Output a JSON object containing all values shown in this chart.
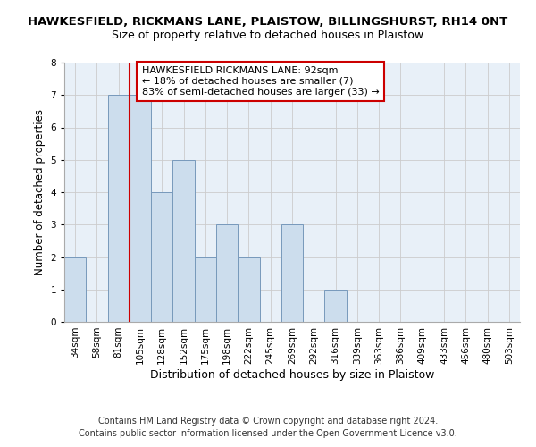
{
  "title": "HAWKESFIELD, RICKMANS LANE, PLAISTOW, BILLINGSHURST, RH14 0NT",
  "subtitle": "Size of property relative to detached houses in Plaistow",
  "xlabel": "Distribution of detached houses by size in Plaistow",
  "ylabel": "Number of detached properties",
  "footer_line1": "Contains HM Land Registry data © Crown copyright and database right 2024.",
  "footer_line2": "Contains public sector information licensed under the Open Government Licence v3.0.",
  "annotation_line1": "HAWKESFIELD RICKMANS LANE: 92sqm",
  "annotation_line2": "← 18% of detached houses are smaller (7)",
  "annotation_line3": "83% of semi-detached houses are larger (33) →",
  "bar_labels": [
    "34sqm",
    "58sqm",
    "81sqm",
    "105sqm",
    "128sqm",
    "152sqm",
    "175sqm",
    "198sqm",
    "222sqm",
    "245sqm",
    "269sqm",
    "292sqm",
    "316sqm",
    "339sqm",
    "363sqm",
    "386sqm",
    "409sqm",
    "433sqm",
    "456sqm",
    "480sqm",
    "503sqm"
  ],
  "bar_values": [
    2,
    0,
    7,
    7,
    4,
    5,
    2,
    3,
    2,
    0,
    3,
    0,
    1,
    0,
    0,
    0,
    0,
    0,
    0,
    0,
    0
  ],
  "bar_color": "#ccdded",
  "bar_edge_color": "#7799bb",
  "vline_x_index": 2.5,
  "vline_color": "#cc0000",
  "ylim": [
    0,
    8
  ],
  "yticks": [
    0,
    1,
    2,
    3,
    4,
    5,
    6,
    7,
    8
  ],
  "grid_color": "#cccccc",
  "bg_color": "#e8f0f8",
  "annotation_box_color": "#cc0000",
  "title_fontsize": 9.5,
  "subtitle_fontsize": 9,
  "axis_label_fontsize": 9,
  "ylabel_fontsize": 8.5,
  "tick_fontsize": 7.5,
  "footer_fontsize": 7,
  "annotation_fontsize": 8
}
